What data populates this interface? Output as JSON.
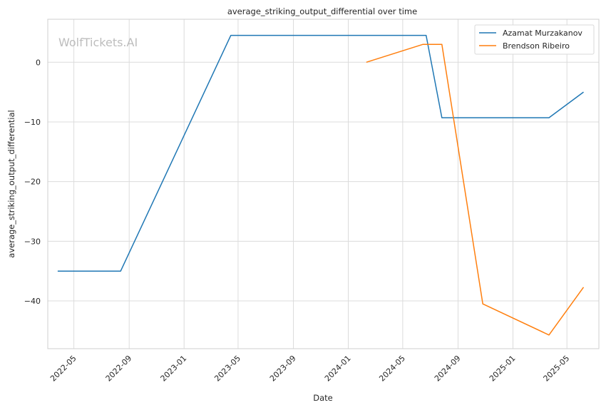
{
  "chart_data": {
    "type": "line",
    "title": "average_striking_output_differential over time",
    "xlabel": "Date",
    "ylabel": "average_striking_output_differential",
    "watermark": "WolfTickets.AI",
    "xlim": [
      "2022-03-04",
      "2025-07-11"
    ],
    "ylim": [
      -48,
      7.2
    ],
    "x_ticks": [
      "2022-05-01",
      "2022-09-01",
      "2023-01-01",
      "2023-05-01",
      "2023-09-01",
      "2024-01-01",
      "2024-05-01",
      "2024-09-01",
      "2025-01-01",
      "2025-05-01"
    ],
    "x_tick_labels": [
      "2022-05",
      "2022-09",
      "2023-01",
      "2023-05",
      "2023-09",
      "2024-01",
      "2024-05",
      "2024-09",
      "2025-01",
      "2025-05"
    ],
    "y_ticks": [
      0,
      -10,
      -20,
      -30,
      -40
    ],
    "y_tick_labels": [
      "0",
      "−10",
      "−20",
      "−30",
      "−40"
    ],
    "grid": true,
    "legend_position": "top-right",
    "series": [
      {
        "name": "Azamat Murzakanov",
        "color": "#1f77b4",
        "points": [
          {
            "x": "2022-03-26",
            "y": -35
          },
          {
            "x": "2022-08-13",
            "y": -35
          },
          {
            "x": "2023-04-15",
            "y": 4.5
          },
          {
            "x": "2024-06-22",
            "y": 4.5
          },
          {
            "x": "2024-07-27",
            "y": -9.3
          },
          {
            "x": "2025-03-22",
            "y": -9.3
          },
          {
            "x": "2025-06-07",
            "y": -5
          }
        ]
      },
      {
        "name": "Brendson Ribeiro",
        "color": "#ff7f0e",
        "points": [
          {
            "x": "2024-02-10",
            "y": 0
          },
          {
            "x": "2024-06-15",
            "y": 3
          },
          {
            "x": "2024-07-27",
            "y": 3
          },
          {
            "x": "2024-10-26",
            "y": -40.5
          },
          {
            "x": "2025-03-22",
            "y": -45.7
          },
          {
            "x": "2025-06-07",
            "y": -37.7
          }
        ]
      }
    ]
  }
}
